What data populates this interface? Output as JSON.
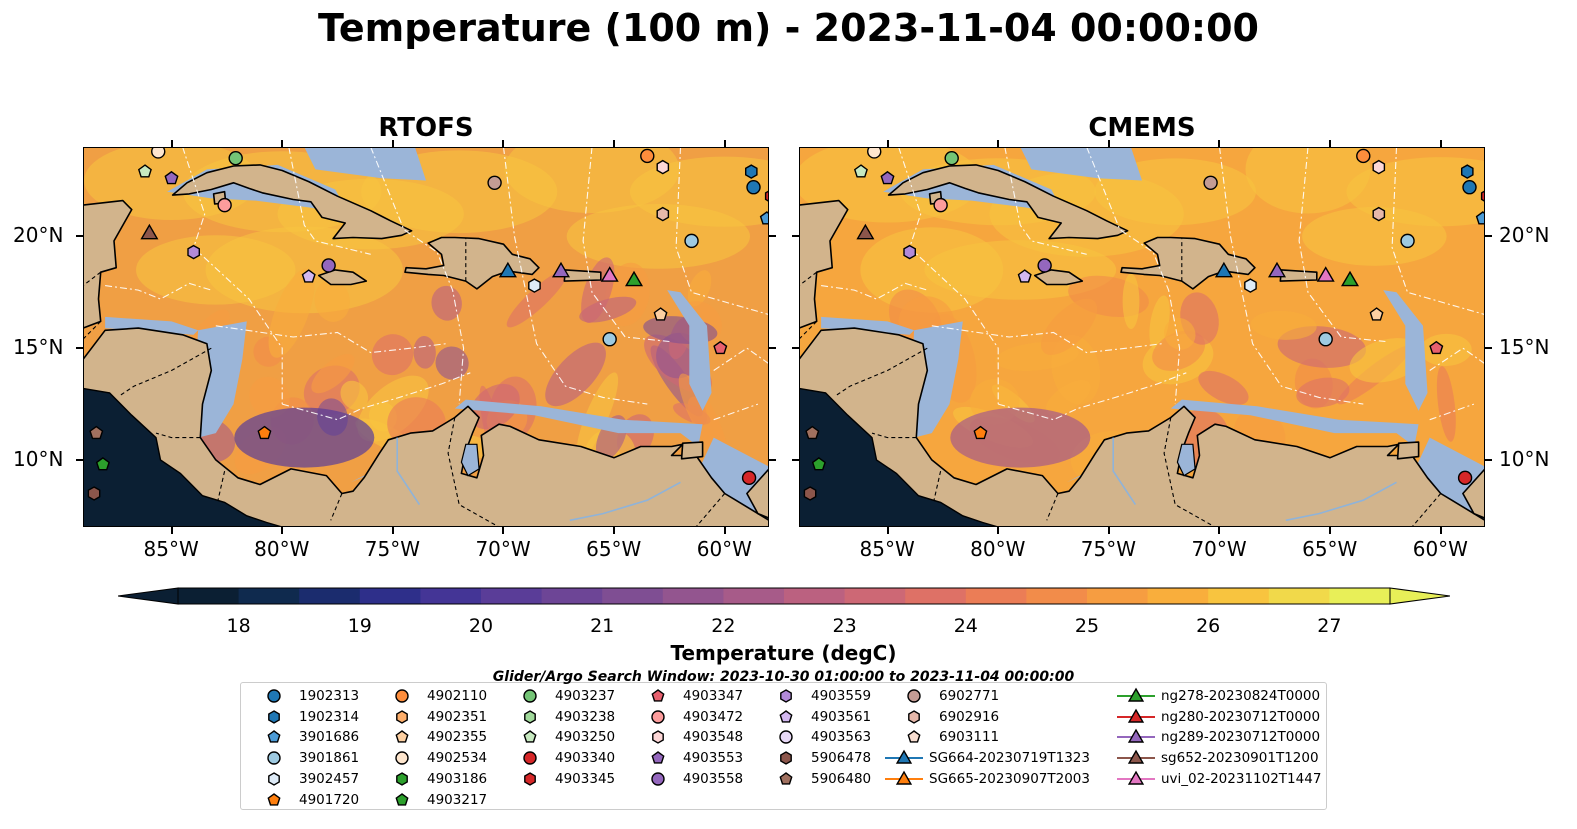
{
  "title": "Temperature (100 m) - 2023-11-04 00:00:00",
  "panels": [
    {
      "title": "RTOFS",
      "palette": "warm"
    },
    {
      "title": "CMEMS",
      "palette": "smooth"
    }
  ],
  "map": {
    "lon_range": [
      -89,
      -58
    ],
    "lat_range": [
      7,
      24
    ],
    "lon_ticks": [
      "85°W",
      "80°W",
      "75°W",
      "70°W",
      "65°W",
      "60°W"
    ],
    "lon_tick_values": [
      -85,
      -80,
      -75,
      -70,
      -65,
      -60
    ],
    "lat_ticks": [
      "20°N",
      "15°N",
      "10°N"
    ],
    "lat_tick_values": [
      20,
      15,
      10
    ],
    "colors": {
      "land": "#d2b48c",
      "shelf": "#9bb5d8",
      "deep_pacific": "#0b1f33",
      "coast": "#000000",
      "eez": "#ffffff"
    }
  },
  "colorbar": {
    "label": "Temperature (degC)",
    "ticks": [
      "18",
      "19",
      "20",
      "21",
      "22",
      "23",
      "24",
      "25",
      "26",
      "27"
    ],
    "tick_values": [
      18,
      19,
      20,
      21,
      22,
      23,
      24,
      25,
      26,
      27
    ],
    "vmin": 18,
    "vmax": 27,
    "step": 0.5,
    "colors": [
      "#0b1f33",
      "#0f2a4e",
      "#1b2c6e",
      "#2e2f8a",
      "#443596",
      "#5a3d98",
      "#6d4596",
      "#7f4e93",
      "#93558f",
      "#a75b89",
      "#bb6180",
      "#cd6875",
      "#de7166",
      "#eb7d56",
      "#f28c4a",
      "#f69d41",
      "#f9ae3c",
      "#f8c43f",
      "#f1d94a",
      "#e8ef58"
    ]
  },
  "legend": {
    "title": "Glider/Argo Search Window: 2023-10-30 01:00:00 to 2023-11-04 00:00:00",
    "items": [
      {
        "label": "1902313",
        "marker": "circle",
        "color": "#1f77b4"
      },
      {
        "label": "1902314",
        "marker": "hexagon",
        "color": "#1f77b4"
      },
      {
        "label": "3901686",
        "marker": "pentagon",
        "color": "#4c9bd6"
      },
      {
        "label": "3901861",
        "marker": "circle",
        "color": "#9ecae1"
      },
      {
        "label": "3902457",
        "marker": "hexagon",
        "color": "#deebf7"
      },
      {
        "label": "4901720",
        "marker": "pentagon",
        "color": "#ff7f0e"
      },
      {
        "label": "4902110",
        "marker": "circle",
        "color": "#fd8d3c"
      },
      {
        "label": "4902351",
        "marker": "hexagon",
        "color": "#fdae6b"
      },
      {
        "label": "4902355",
        "marker": "pentagon",
        "color": "#fdd0a2"
      },
      {
        "label": "4902534",
        "marker": "circle",
        "color": "#fee6ce"
      },
      {
        "label": "4903186",
        "marker": "hexagon",
        "color": "#2ca02c"
      },
      {
        "label": "4903217",
        "marker": "pentagon",
        "color": "#2ca02c"
      },
      {
        "label": "4903237",
        "marker": "circle",
        "color": "#74c476"
      },
      {
        "label": "4903238",
        "marker": "hexagon",
        "color": "#a1d99b"
      },
      {
        "label": "4903250",
        "marker": "pentagon",
        "color": "#c7e9c0"
      },
      {
        "label": "4903340",
        "marker": "circle",
        "color": "#d62728"
      },
      {
        "label": "4903345",
        "marker": "hexagon",
        "color": "#d62728"
      },
      {
        "label": "4903347",
        "marker": "pentagon",
        "color": "#e7606e"
      },
      {
        "label": "4903472",
        "marker": "circle",
        "color": "#fc9c9c"
      },
      {
        "label": "4903548",
        "marker": "hexagon",
        "color": "#fdd7d7"
      },
      {
        "label": "4903553",
        "marker": "pentagon",
        "color": "#9467bd"
      },
      {
        "label": "4903558",
        "marker": "circle",
        "color": "#9467bd"
      },
      {
        "label": "4903559",
        "marker": "hexagon",
        "color": "#b28ad8"
      },
      {
        "label": "4903561",
        "marker": "pentagon",
        "color": "#d3b8f0"
      },
      {
        "label": "4903563",
        "marker": "circle",
        "color": "#e8d9f7"
      },
      {
        "label": "5906478",
        "marker": "hexagon",
        "color": "#8c564b"
      },
      {
        "label": "5906480",
        "marker": "pentagon",
        "color": "#a0705f"
      },
      {
        "label": "6902771",
        "marker": "circle",
        "color": "#c49c94"
      },
      {
        "label": "6902916",
        "marker": "hexagon",
        "color": "#e6b8aa"
      },
      {
        "label": "6903111",
        "marker": "pentagon",
        "color": "#f7ddd0"
      },
      {
        "label": "SG664-20230719T1323",
        "marker": "triangle",
        "color": "#1f77b4"
      },
      {
        "label": "SG665-20230907T2003",
        "marker": "triangle",
        "color": "#ff7f0e"
      },
      {
        "label": "ng278-20230824T0000",
        "marker": "triangle",
        "color": "#2ca02c"
      },
      {
        "label": "ng280-20230712T0000",
        "marker": "triangle",
        "color": "#d62728"
      },
      {
        "label": "ng289-20230712T0000",
        "marker": "triangle",
        "color": "#9467bd"
      },
      {
        "label": "sg652-20230901T1200",
        "marker": "triangle",
        "color": "#8c564b"
      },
      {
        "label": "uvi_02-20231102T1447",
        "marker": "triangle",
        "color": "#e377c2"
      }
    ]
  }
}
